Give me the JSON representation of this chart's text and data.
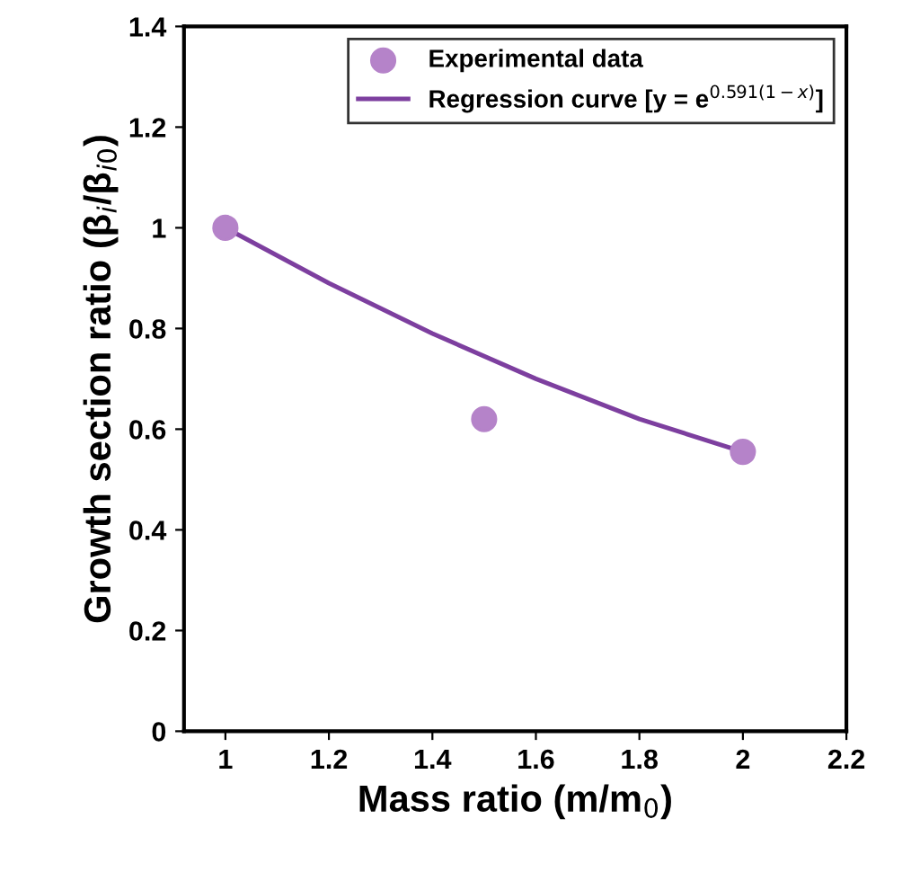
{
  "chart_data": {
    "type": "scatter",
    "xlabel": "Mass ratio (m/m$_{0}$)",
    "ylabel": "Growth section ratio (β$_{i}$/β$_{i0}$)",
    "xlim": [
      0.92,
      2.2
    ],
    "xticks": [
      1,
      1.2,
      1.4,
      1.6,
      1.8,
      2,
      2.2
    ],
    "ylim": [
      0,
      1.4
    ],
    "yticks": [
      0,
      0.2,
      0.4,
      0.6,
      0.8,
      1,
      1.2,
      1.4
    ],
    "grid": false,
    "legend": "top right",
    "series": [
      {
        "name": "Experimental data",
        "marker": "circle",
        "color": "#b583c9",
        "x": [
          1,
          1.5,
          2
        ],
        "values": [
          1.0,
          0.62,
          0.555
        ]
      },
      {
        "name": "Regression curve [y = e$^{0.591(1−x)}$]",
        "type": "line",
        "marker": "none",
        "line_style": "solid",
        "color": "#7d3f9f",
        "x": [
          1,
          1.2,
          1.4,
          1.6,
          1.8,
          2
        ],
        "values": [
          1.0,
          0.89,
          0.79,
          0.7,
          0.62,
          0.555
        ]
      }
    ]
  }
}
